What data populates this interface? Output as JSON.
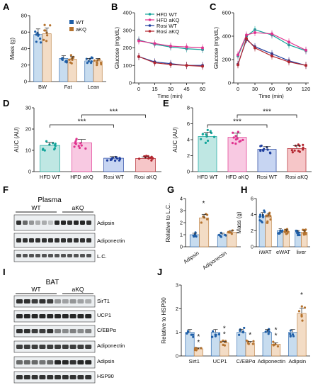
{
  "panel_letters": [
    "A",
    "B",
    "C",
    "D",
    "E",
    "F",
    "G",
    "H",
    "I",
    "J"
  ],
  "colors": {
    "wt": "#1f5fa8",
    "wt_fill": "#c7dcef",
    "akq": "#b5732f",
    "akq_fill": "#f3dcc5",
    "hfd_wt": "#14a59b",
    "hfd_wt_fill": "#bfe7e3",
    "hfd_akq": "#e0338f",
    "hfd_akq_fill": "#f8c9e2",
    "rosi_wt": "#1f3f9e",
    "rosi_wt_fill": "#c7d5f2",
    "rosi_akq": "#b3262f",
    "rosi_akq_fill": "#f6c6c8"
  },
  "blots_F": {
    "title": "Plasma",
    "group_labels": [
      "WT",
      "aKQ"
    ],
    "rows": [
      "Adipsin",
      "Adiponectin",
      "L.C."
    ]
  },
  "blots_I": {
    "title": "BAT",
    "group_labels": [
      "WT",
      "aKQ"
    ],
    "rows": [
      "SirT1",
      "UCP1",
      "C/EBPα",
      "Adiponectin",
      "Adipsin",
      "HSP90"
    ]
  },
  "chart_data": [
    {
      "panel": "A",
      "type": "bar",
      "categories": [
        "BW",
        "Fat",
        "Lean"
      ],
      "series": [
        {
          "name": "WT",
          "values": [
            57,
            28,
            25
          ]
        },
        {
          "name": "aKQ",
          "values": [
            58,
            27,
            25
          ]
        }
      ],
      "ylabel": "Mass (g)",
      "ylim": [
        0,
        80
      ],
      "yticks": [
        0,
        20,
        40,
        60,
        80
      ],
      "legend": "top-right"
    },
    {
      "panel": "B",
      "type": "line",
      "x": [
        0,
        15,
        30,
        45,
        60
      ],
      "series": [
        {
          "name": "HFD WT",
          "values": [
            245,
            220,
            205,
            195,
            190
          ]
        },
        {
          "name": "HFD aKQ",
          "values": [
            240,
            225,
            210,
            205,
            200
          ]
        },
        {
          "name": "Rosi WT",
          "values": [
            150,
            120,
            110,
            100,
            100
          ]
        },
        {
          "name": "Rosi aKQ",
          "values": [
            150,
            115,
            105,
            100,
            95
          ]
        }
      ],
      "xlabel": "Time (min)",
      "ylabel": "Glucose (mg/dL)",
      "ylim": [
        0,
        400
      ],
      "yticks": [
        0,
        100,
        200,
        300,
        400
      ],
      "legend": "top"
    },
    {
      "panel": "C",
      "type": "line",
      "x": [
        0,
        15,
        30,
        60,
        90,
        120
      ],
      "series": [
        {
          "name": "HFD WT",
          "values": [
            230,
            400,
            455,
            410,
            325,
            275
          ]
        },
        {
          "name": "HFD aKQ",
          "values": [
            240,
            410,
            430,
            420,
            350,
            280
          ]
        },
        {
          "name": "Rosi WT",
          "values": [
            160,
            370,
            310,
            250,
            190,
            150
          ]
        },
        {
          "name": "Rosi aKQ",
          "values": [
            155,
            380,
            300,
            230,
            180,
            150
          ]
        }
      ],
      "xlabel": "Time (min)",
      "ylabel": "Glucose (mg/dL)",
      "ylim": [
        0,
        600
      ],
      "yticks": [
        0,
        200,
        400,
        600
      ]
    },
    {
      "panel": "D",
      "type": "bar",
      "categories": [
        "HFD WT",
        "HFD aKQ",
        "Rosi WT",
        "Rosi aKQ"
      ],
      "values": [
        12.3,
        13.5,
        6.3,
        6.2
      ],
      "ylabel": "AUC (AU)",
      "ylim": [
        0,
        30
      ],
      "yticks": [
        0,
        10,
        20,
        30
      ],
      "annotations": [
        "***",
        "***"
      ]
    },
    {
      "panel": "E",
      "type": "bar",
      "categories": [
        "HFD WT",
        "HFD aKQ",
        "Rosi WT",
        "Rosi aKQ"
      ],
      "values": [
        4.4,
        4.3,
        2.8,
        2.9
      ],
      "ylabel": "AUC (AU)",
      "ylim": [
        0,
        8
      ],
      "yticks": [
        0,
        2,
        4,
        6,
        8
      ],
      "annotations": [
        "***",
        "***"
      ]
    },
    {
      "panel": "G",
      "type": "bar",
      "categories": [
        "Adipsin",
        "Adiponectin"
      ],
      "series": [
        {
          "name": "WT",
          "values": [
            1.0,
            1.0
          ]
        },
        {
          "name": "aKQ",
          "values": [
            2.4,
            1.2
          ]
        }
      ],
      "ylabel": "Relative to L.C.",
      "ylim": [
        0,
        4
      ],
      "yticks": [
        0,
        1,
        2,
        3,
        4
      ],
      "annotations": [
        "*"
      ]
    },
    {
      "panel": "H",
      "type": "bar",
      "categories": [
        "iWAT",
        "eWAT",
        "liver"
      ],
      "series": [
        {
          "name": "WT",
          "values": [
            3.8,
            2.0,
            1.8
          ]
        },
        {
          "name": "aKQ",
          "values": [
            3.7,
            1.9,
            1.8
          ]
        }
      ],
      "ylabel": "Mass (g)",
      "ylim": [
        0,
        6
      ],
      "yticks": [
        0,
        2,
        4,
        6
      ]
    },
    {
      "panel": "J",
      "type": "bar",
      "categories": [
        "Sirt1",
        "UCP1",
        "C/EBPα",
        "Adiponectin",
        "Adipsin"
      ],
      "series": [
        {
          "name": "WT",
          "values": [
            1.0,
            1.0,
            1.0,
            1.0,
            1.0
          ]
        },
        {
          "name": "aKQ",
          "values": [
            0.3,
            0.55,
            0.55,
            0.5,
            1.8
          ]
        }
      ],
      "ylabel": "Relative to HSP90",
      "ylim": [
        0,
        3
      ],
      "yticks": [
        0,
        1,
        2,
        3
      ],
      "annotations": [
        "**",
        "**",
        "*",
        "**",
        "*"
      ]
    }
  ]
}
